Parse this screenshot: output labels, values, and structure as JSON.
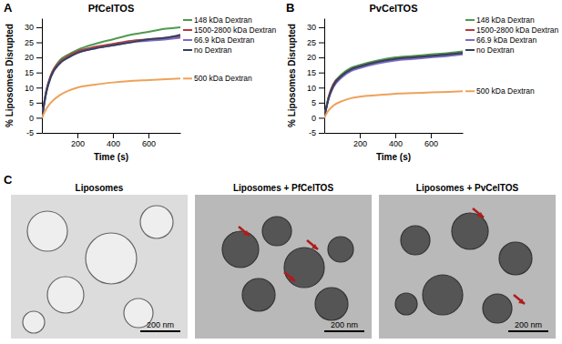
{
  "chart_data": [
    {
      "type": "line",
      "panel_label": "A",
      "title": "PfCelTOS",
      "x_label": "Time (s)",
      "y_label": "% Liposomes Disrupted",
      "x": [
        0,
        25,
        50,
        100,
        150,
        200,
        300,
        400,
        500,
        600,
        700,
        780
      ],
      "xlim": [
        0,
        780
      ],
      "xticks": [
        200,
        400,
        600
      ],
      "ylim": [
        -5,
        33
      ],
      "yticks": [
        -5,
        0,
        5,
        10,
        15,
        20,
        25,
        30
      ],
      "legend": "right",
      "series": [
        {
          "name": "148 kDa Dextran",
          "color": "#4e9a4e",
          "values": [
            0,
            9,
            14,
            19,
            21,
            22.5,
            24.5,
            26,
            27.5,
            28.5,
            29.5,
            30
          ]
        },
        {
          "name": "1500-2800 kDa Dextran",
          "color": "#b83a3a",
          "values": [
            0,
            9,
            14,
            18.5,
            20.5,
            22,
            23.5,
            24.5,
            25.5,
            26,
            26.5,
            27
          ]
        },
        {
          "name": "66.9 kDa Dextran",
          "color": "#7a6cc4",
          "values": [
            0,
            8.5,
            13.5,
            18,
            20,
            21.5,
            23,
            24,
            25,
            25.5,
            26,
            26.5
          ]
        },
        {
          "name": "no Dextran",
          "color": "#33405e",
          "values": [
            0,
            8.5,
            13.5,
            18,
            20,
            21.5,
            23,
            24,
            25,
            26,
            26.5,
            27.5
          ]
        },
        {
          "name": "500 kDa Dextran",
          "color": "#eea25a",
          "values": [
            0,
            3,
            5,
            7.5,
            9,
            10,
            11,
            11.7,
            12.2,
            12.5,
            12.8,
            13
          ]
        }
      ]
    },
    {
      "type": "line",
      "panel_label": "B",
      "title": "PvCelTOS",
      "x_label": "Time (s)",
      "y_label": "% Liposomes Disrupted",
      "x": [
        0,
        25,
        50,
        100,
        150,
        200,
        300,
        400,
        500,
        600,
        700,
        780
      ],
      "xlim": [
        0,
        780
      ],
      "xticks": [
        200,
        400,
        600
      ],
      "ylim": [
        -5,
        33
      ],
      "yticks": [
        -5,
        0,
        5,
        10,
        15,
        20,
        25,
        30
      ],
      "legend": "right",
      "series": [
        {
          "name": "148 kDa Dextran",
          "color": "#4e9a4e",
          "values": [
            0,
            7,
            11,
            14.5,
            16.5,
            17.5,
            19,
            20,
            20.5,
            21,
            21.5,
            22
          ]
        },
        {
          "name": "1500-2800 kDa Dextran",
          "color": "#b83a3a",
          "values": [
            0,
            7,
            11,
            14,
            16,
            17,
            18.5,
            19.5,
            20,
            20.5,
            21,
            21.5
          ]
        },
        {
          "name": "66.9 kDa Dextran",
          "color": "#7a6cc4",
          "values": [
            0,
            6.5,
            10,
            13.5,
            15.5,
            16.5,
            18,
            19,
            19.5,
            20,
            20.5,
            21
          ]
        },
        {
          "name": "no Dextran",
          "color": "#33405e",
          "values": [
            0,
            6.5,
            10.5,
            14,
            16,
            17,
            18.5,
            19.5,
            20,
            20.5,
            21,
            21.5
          ]
        },
        {
          "name": "500 kDa Dextran",
          "color": "#eea25a",
          "values": [
            0,
            2.5,
            4,
            5.5,
            6.5,
            7,
            7.5,
            8,
            8.2,
            8.4,
            8.6,
            8.8
          ]
        }
      ]
    }
  ],
  "panel_c": {
    "panel_label": "C",
    "images": [
      {
        "title": "Liposomes",
        "scale_bar": "200 nm"
      },
      {
        "title": "Liposomes + PfCelTOS",
        "scale_bar": "200 nm"
      },
      {
        "title": "Liposomes + PvCelTOS",
        "scale_bar": "200 nm"
      }
    ]
  }
}
